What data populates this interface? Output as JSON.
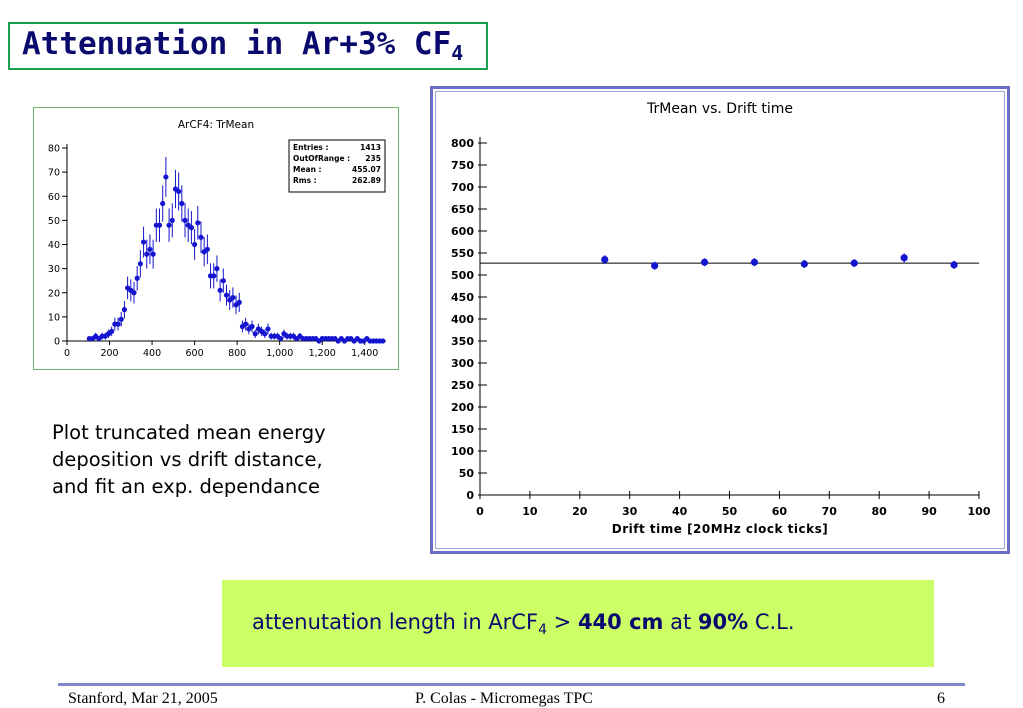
{
  "slide": {
    "title_main": "Attenuation in Ar+3% CF",
    "title_sub": "4",
    "caption_lines": [
      "Plot truncated mean energy",
      "deposition vs drift distance,",
      "and fit an exp. dependance"
    ],
    "result": {
      "prefix": "attenutation length in ArCF",
      "sub": "4",
      "gt": " > ",
      "value": "440 cm",
      "at": " at ",
      "cl_value": "90%",
      "cl": " C.L."
    },
    "footer": {
      "left": "Stanford,  Mar 21, 2005",
      "center": "P. Colas  -  Micromegas TPC",
      "right": "6"
    }
  },
  "chart_data": [
    {
      "type": "bar",
      "title": "ArCF4: TrMean",
      "xlim": [
        0,
        1500
      ],
      "ylim": [
        0,
        80
      ],
      "xticks": [
        "0",
        "200",
        "400",
        "600",
        "800",
        "1,000",
        "1,200",
        "1,400"
      ],
      "xtick_values": [
        0,
        200,
        400,
        600,
        800,
        1000,
        1200,
        1400
      ],
      "yticks": [
        "0",
        "10",
        "20",
        "30",
        "40",
        "50",
        "60",
        "70",
        "80"
      ],
      "ytick_values": [
        0,
        10,
        20,
        30,
        40,
        50,
        60,
        70,
        80
      ],
      "bin_width": 15,
      "x": [
        105,
        120,
        135,
        150,
        165,
        180,
        195,
        210,
        225,
        240,
        255,
        270,
        285,
        300,
        315,
        330,
        345,
        360,
        375,
        390,
        405,
        420,
        435,
        450,
        465,
        480,
        495,
        510,
        525,
        540,
        555,
        570,
        585,
        600,
        615,
        630,
        645,
        660,
        675,
        690,
        705,
        720,
        735,
        750,
        765,
        780,
        795,
        810,
        825,
        840,
        855,
        870,
        885,
        900,
        915,
        930,
        945,
        960,
        975,
        990,
        1005,
        1020,
        1035,
        1050,
        1065,
        1080,
        1095,
        1110,
        1125,
        1140,
        1155,
        1170,
        1185,
        1200,
        1215,
        1230,
        1245,
        1260,
        1275,
        1290,
        1305,
        1320,
        1335,
        1350,
        1365,
        1380,
        1395,
        1410,
        1425,
        1440,
        1455,
        1470,
        1485
      ],
      "values": [
        1,
        1,
        2,
        1,
        2,
        2,
        3,
        4,
        7,
        7,
        9,
        13,
        22,
        21,
        20,
        26,
        32,
        41,
        36,
        38,
        36,
        48,
        48,
        57,
        68,
        48,
        50,
        63,
        62,
        57,
        50,
        48,
        47,
        40,
        49,
        43,
        37,
        38,
        27,
        27,
        30,
        21,
        25,
        19,
        17,
        18,
        15,
        16,
        6,
        7,
        5,
        6,
        3,
        5,
        4,
        3,
        5,
        2,
        2,
        2,
        1,
        3,
        2,
        2,
        2,
        1,
        2,
        1,
        1,
        1,
        1,
        1,
        0,
        1,
        1,
        1,
        1,
        1,
        0,
        1,
        0,
        1,
        1,
        0,
        1,
        0,
        0,
        1,
        0,
        0,
        0,
        0,
        0
      ],
      "stats": [
        {
          "label": "Entries :",
          "value": "1413"
        },
        {
          "label": "OutOfRange :",
          "value": "235"
        },
        {
          "label": "Mean :",
          "value": "455.07"
        },
        {
          "label": "Rms :",
          "value": "262.89"
        }
      ]
    },
    {
      "type": "scatter",
      "title": "TrMean vs. Drift time",
      "xlabel": "Drift time  [20MHz clock ticks]",
      "ylabel": "",
      "xlim": [
        0,
        100
      ],
      "ylim": [
        0,
        800
      ],
      "xticks": [
        "0",
        "10",
        "20",
        "30",
        "40",
        "50",
        "60",
        "70",
        "80",
        "90",
        "100"
      ],
      "xtick_values": [
        0,
        10,
        20,
        30,
        40,
        50,
        60,
        70,
        80,
        90,
        100
      ],
      "yticks": [
        "0",
        "50",
        "100",
        "150",
        "200",
        "250",
        "300",
        "350",
        "400",
        "450",
        "500",
        "550",
        "600",
        "650",
        "700",
        "750",
        "800"
      ],
      "ytick_values": [
        0,
        50,
        100,
        150,
        200,
        250,
        300,
        350,
        400,
        450,
        500,
        550,
        600,
        650,
        700,
        750,
        800
      ],
      "x": [
        25,
        35,
        45,
        55,
        65,
        75,
        85,
        95
      ],
      "y": [
        535,
        521,
        529,
        529,
        525,
        527,
        539,
        523
      ],
      "yerr": [
        10,
        9,
        9,
        9,
        9,
        9,
        10,
        9
      ],
      "fit_value": 527,
      "fit_xrange": [
        0,
        100
      ]
    }
  ],
  "colors": {
    "marker": "#1515d0",
    "title": "#0a0a6e",
    "highlight_box": "#ccff66",
    "title_border": "#1aa050",
    "frame": "#6a70c8"
  }
}
